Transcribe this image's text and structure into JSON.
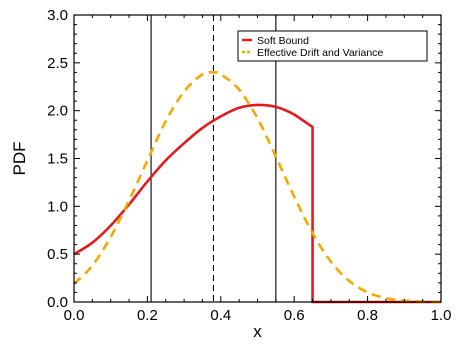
{
  "chart_data": {
    "type": "line",
    "xlabel": "x",
    "ylabel": "PDF",
    "xlim": [
      0.0,
      1.0
    ],
    "ylim": [
      0.0,
      3.0
    ],
    "x_ticks": [
      "0.0",
      "0.2",
      "0.4",
      "0.6",
      "0.8",
      "1.0"
    ],
    "y_ticks": [
      "0.0",
      "0.5",
      "1.0",
      "1.5",
      "2.0",
      "2.5",
      "3.0"
    ],
    "grid": false,
    "legend_position": "top-right",
    "series": [
      {
        "name": "Soft Bound",
        "color": "#e41a1c",
        "line_style": "solid",
        "x": [
          0.0,
          0.05,
          0.1,
          0.15,
          0.2,
          0.25,
          0.3,
          0.35,
          0.4,
          0.45,
          0.5,
          0.55,
          0.6,
          0.65,
          0.65,
          0.7,
          0.8,
          0.9,
          1.0
        ],
        "y": [
          0.5,
          0.62,
          0.8,
          1.02,
          1.26,
          1.48,
          1.66,
          1.82,
          1.94,
          2.03,
          2.06,
          2.04,
          1.96,
          1.83,
          0.0,
          0.0,
          0.0,
          0.0,
          0.0
        ]
      },
      {
        "name": "Effective Drift and Variance",
        "color": "#f5a800",
        "line_style": "dashed",
        "x": [
          0.0,
          0.05,
          0.1,
          0.15,
          0.2,
          0.25,
          0.3,
          0.35,
          0.38,
          0.4,
          0.45,
          0.5,
          0.55,
          0.6,
          0.65,
          0.7,
          0.75,
          0.8,
          0.85,
          0.9,
          0.95,
          1.0
        ],
        "y": [
          0.19,
          0.38,
          0.68,
          1.06,
          1.48,
          1.89,
          2.2,
          2.38,
          2.4,
          2.38,
          2.22,
          1.92,
          1.52,
          1.1,
          0.72,
          0.42,
          0.22,
          0.1,
          0.04,
          0.015,
          0.005,
          0.0
        ]
      }
    ],
    "vertical_lines": [
      {
        "x": 0.21,
        "style": "solid",
        "color": "#000000"
      },
      {
        "x": 0.38,
        "style": "dashed",
        "color": "#000000"
      },
      {
        "x": 0.55,
        "style": "solid",
        "color": "#000000"
      }
    ]
  }
}
